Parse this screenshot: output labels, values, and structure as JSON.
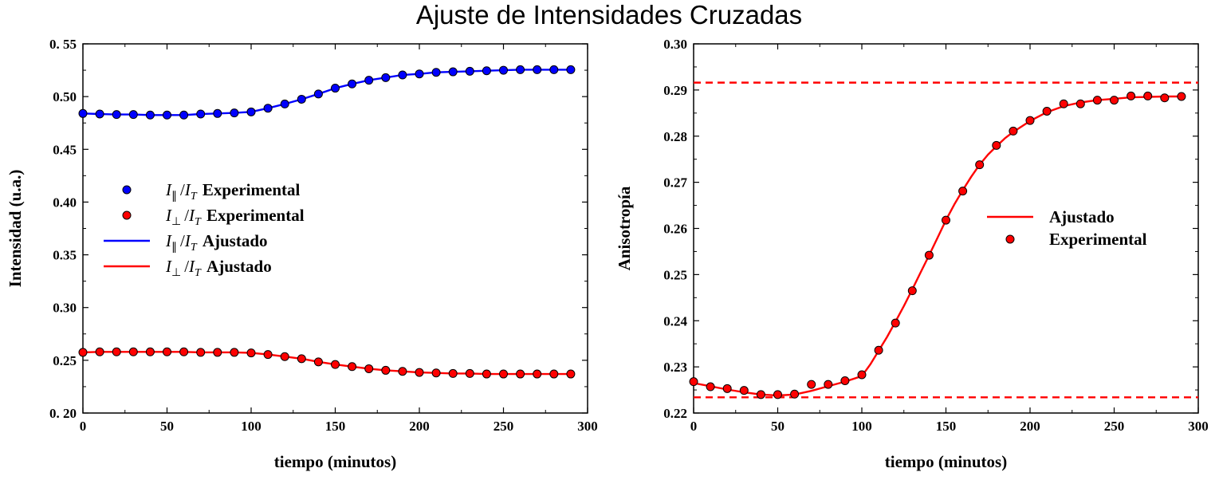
{
  "figure": {
    "title": "Ajuste de Intensidades Cruzadas"
  },
  "colors": {
    "blue": "#0000ff",
    "red": "#ff0000",
    "marker_edge": "#000000"
  },
  "chart_data": [
    {
      "type": "line",
      "xlabel": "tiempo (minutos)",
      "ylabel": "Intensidad (u.a.)",
      "xlim": [
        0,
        300
      ],
      "ylim": [
        0.2,
        0.55
      ],
      "xticks": [
        0,
        50,
        100,
        150,
        200,
        250,
        300
      ],
      "xtick_labels": [
        "0",
        "50",
        "100",
        "150",
        "200",
        "250",
        "300"
      ],
      "yticks": [
        0.2,
        0.25,
        0.3,
        0.35,
        0.4,
        0.45,
        0.5,
        0.55
      ],
      "ytick_labels": [
        "0. 20",
        "0.25",
        "0.30",
        "0.35",
        "0.40",
        "0.45",
        "0.50",
        "0. 55"
      ],
      "grid": false,
      "legend_position": "center-left",
      "x": [
        0,
        10,
        20,
        30,
        40,
        50,
        60,
        70,
        80,
        90,
        100,
        110,
        120,
        130,
        140,
        150,
        160,
        170,
        180,
        190,
        200,
        210,
        220,
        230,
        240,
        250,
        260,
        270,
        280,
        290
      ],
      "series": [
        {
          "key": "par_exp",
          "style": "markers",
          "color": "#0000ff",
          "legend_math": [
            "I",
            "∥",
            "/",
            "I",
            "T"
          ],
          "legend_text": "Experimental",
          "values": [
            0.484,
            0.4835,
            0.483,
            0.483,
            0.4825,
            0.4825,
            0.4825,
            0.4835,
            0.484,
            0.4845,
            0.4855,
            0.489,
            0.493,
            0.4975,
            0.5025,
            0.508,
            0.512,
            0.5155,
            0.518,
            0.5205,
            0.5215,
            0.523,
            0.5235,
            0.524,
            0.5245,
            0.525,
            0.5255,
            0.5255,
            0.5255,
            0.5255
          ]
        },
        {
          "key": "perp_exp",
          "style": "markers",
          "color": "#ff0000",
          "legend_math": [
            "I",
            "⊥",
            "/",
            "I",
            "T"
          ],
          "legend_text": "Experimental",
          "values": [
            0.2575,
            0.258,
            0.258,
            0.258,
            0.258,
            0.258,
            0.258,
            0.2575,
            0.2575,
            0.2575,
            0.257,
            0.2555,
            0.2535,
            0.2515,
            0.2485,
            0.246,
            0.244,
            0.242,
            0.2405,
            0.2395,
            0.2385,
            0.238,
            0.2375,
            0.2375,
            0.237,
            0.237,
            0.237,
            0.237,
            0.237,
            0.237
          ]
        },
        {
          "key": "par_fit",
          "style": "line",
          "color": "#0000ff",
          "legend_math": [
            "I",
            "∥",
            "/",
            "I",
            "T"
          ],
          "legend_text": "Ajustado",
          "values": [
            0.484,
            0.4835,
            0.483,
            0.483,
            0.4825,
            0.4825,
            0.4825,
            0.4835,
            0.484,
            0.4845,
            0.4855,
            0.489,
            0.493,
            0.4975,
            0.5025,
            0.508,
            0.512,
            0.5155,
            0.518,
            0.5205,
            0.5215,
            0.523,
            0.5235,
            0.524,
            0.5245,
            0.525,
            0.5255,
            0.5255,
            0.5255,
            0.5255
          ]
        },
        {
          "key": "perp_fit",
          "style": "line",
          "color": "#ff0000",
          "legend_math": [
            "I",
            "⊥",
            "/",
            "I",
            "T"
          ],
          "legend_text": "Ajustado",
          "values": [
            0.2575,
            0.258,
            0.258,
            0.258,
            0.258,
            0.258,
            0.258,
            0.2575,
            0.2575,
            0.2575,
            0.257,
            0.2555,
            0.2535,
            0.2515,
            0.2485,
            0.246,
            0.244,
            0.242,
            0.2405,
            0.2395,
            0.2385,
            0.238,
            0.2375,
            0.2375,
            0.237,
            0.237,
            0.237,
            0.237,
            0.237,
            0.237
          ]
        }
      ]
    },
    {
      "type": "line",
      "xlabel": "tiempo (minutos)",
      "ylabel": "Anisotropía",
      "xlim": [
        0,
        300
      ],
      "ylim": [
        0.22,
        0.3
      ],
      "xticks": [
        0,
        50,
        100,
        150,
        200,
        250,
        300
      ],
      "xtick_labels": [
        "0",
        "50",
        "100",
        "150",
        "200",
        "250",
        "300"
      ],
      "yticks": [
        0.22,
        0.23,
        0.24,
        0.25,
        0.26,
        0.27,
        0.28,
        0.29,
        0.3
      ],
      "ytick_labels": [
        "0.22",
        "0.23",
        "0.24",
        "0.25",
        "0.26",
        "0.27",
        "0.28",
        "0.29",
        "0.30"
      ],
      "grid": false,
      "legend_position": "center-right",
      "hlines": [
        {
          "y": 0.2916,
          "color": "#ff0000",
          "style": "dashed"
        },
        {
          "y": 0.2234,
          "color": "#ff0000",
          "style": "dashed"
        }
      ],
      "x": [
        0,
        10,
        20,
        30,
        40,
        50,
        60,
        70,
        80,
        90,
        100,
        110,
        120,
        130,
        140,
        150,
        160,
        170,
        180,
        190,
        200,
        210,
        220,
        230,
        240,
        250,
        260,
        270,
        280,
        290
      ],
      "series": [
        {
          "key": "fit",
          "style": "line",
          "color": "#ff0000",
          "legend_text": "Ajustado",
          "x": [
            0,
            10,
            20,
            30,
            40,
            50,
            60,
            70,
            80,
            90,
            100,
            105,
            110,
            115,
            120,
            125,
            130,
            135,
            140,
            145,
            150,
            155,
            160,
            165,
            170,
            175,
            180,
            185,
            190,
            200,
            210,
            220,
            230,
            240,
            250,
            260,
            270,
            280,
            290
          ],
          "values": [
            0.2265,
            0.2258,
            0.2251,
            0.2245,
            0.224,
            0.2238,
            0.224,
            0.2248,
            0.2258,
            0.2268,
            0.228,
            0.2305,
            0.2335,
            0.2365,
            0.2398,
            0.2432,
            0.2468,
            0.2505,
            0.2542,
            0.258,
            0.2618,
            0.2652,
            0.2683,
            0.2712,
            0.2738,
            0.276,
            0.2778,
            0.2795,
            0.2809,
            0.2833,
            0.2852,
            0.2865,
            0.2873,
            0.2878,
            0.2881,
            0.2884,
            0.2885,
            0.2886,
            0.2886
          ]
        },
        {
          "key": "exp",
          "style": "markers",
          "color": "#ff0000",
          "legend_text": "Experimental",
          "values": [
            0.2268,
            0.2257,
            0.2253,
            0.2249,
            0.224,
            0.224,
            0.2241,
            0.2262,
            0.2262,
            0.227,
            0.2283,
            0.2336,
            0.2395,
            0.2465,
            0.2542,
            0.2618,
            0.2681,
            0.2738,
            0.278,
            0.2811,
            0.2834,
            0.2854,
            0.287,
            0.287,
            0.2878,
            0.2878,
            0.2887,
            0.2887,
            0.2883,
            0.2886
          ]
        }
      ]
    }
  ]
}
